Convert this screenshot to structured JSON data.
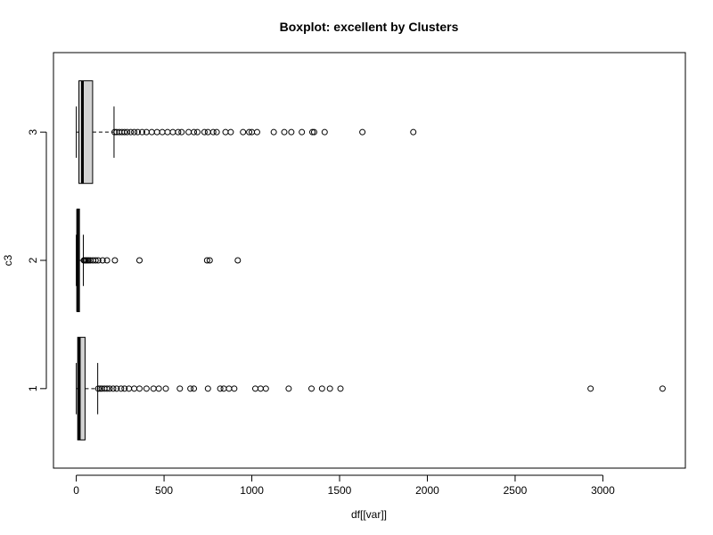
{
  "chart_data": {
    "type": "boxplot",
    "orientation": "horizontal",
    "title": "Boxplot:  excellent  by Clusters",
    "xlabel": "df[[var]]",
    "ylabel": "c3",
    "xlim": [
      -130,
      3470
    ],
    "x_ticks": [
      0,
      500,
      1000,
      1500,
      2000,
      2500,
      3000
    ],
    "categories": [
      "1",
      "2",
      "3"
    ],
    "box_color": "#d3d3d3",
    "series": [
      {
        "name": "1",
        "whisker_low": 0,
        "q1": 8,
        "median": 17,
        "q3": 50,
        "whisker_high": 122,
        "outliers": [
          125,
          135,
          145,
          160,
          175,
          190,
          210,
          230,
          255,
          275,
          300,
          330,
          360,
          400,
          440,
          470,
          510,
          590,
          650,
          670,
          750,
          820,
          840,
          870,
          900,
          1020,
          1050,
          1080,
          1210,
          1340,
          1400,
          1445,
          1505,
          2930,
          3340
        ]
      },
      {
        "name": "2",
        "whisker_low": 0,
        "q1": 4,
        "median": 8,
        "q3": 18,
        "whisker_high": 40,
        "outliers": [
          43,
          48,
          55,
          62,
          70,
          80,
          95,
          110,
          125,
          150,
          175,
          220,
          360,
          745,
          760,
          920
        ]
      },
      {
        "name": "3",
        "whisker_low": 0,
        "q1": 15,
        "median": 35,
        "q3": 93,
        "whisker_high": 215,
        "outliers": [
          218,
          230,
          245,
          260,
          275,
          290,
          310,
          330,
          350,
          375,
          400,
          430,
          460,
          490,
          520,
          550,
          580,
          600,
          640,
          670,
          690,
          730,
          750,
          780,
          800,
          850,
          880,
          950,
          985,
          1000,
          1030,
          1125,
          1185,
          1225,
          1285,
          1345,
          1355,
          1415,
          1630,
          1920
        ]
      }
    ]
  }
}
